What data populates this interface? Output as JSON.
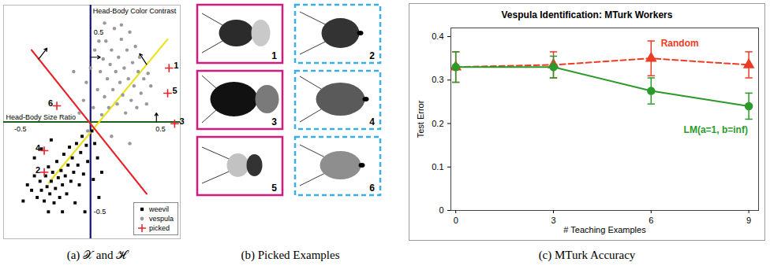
{
  "chart_data": [
    {
      "type": "scatter",
      "caption": "(a) 𝒳 and ℋ",
      "xlabel": "Head-Body Size Ratio",
      "ylabel": "Head-Body Color Contrast",
      "xlim": [
        -0.62,
        0.64
      ],
      "ylim": [
        -0.65,
        0.65
      ],
      "xticks": [
        -0.5,
        0.5
      ],
      "yticks": [
        -0.5,
        0.5
      ],
      "grid": false,
      "legend": "lower right",
      "series": [
        {
          "name": "weevil",
          "color": "#000000",
          "marker": "square",
          "x": [
            -0.45,
            -0.42,
            -0.4,
            -0.38,
            -0.36,
            -0.35,
            -0.33,
            -0.32,
            -0.31,
            -0.3,
            -0.29,
            -0.28,
            -0.27,
            -0.26,
            -0.25,
            -0.24,
            -0.23,
            -0.22,
            -0.21,
            -0.2,
            -0.19,
            -0.18,
            -0.17,
            -0.16,
            -0.15,
            -0.14,
            -0.13,
            -0.12,
            -0.11,
            -0.1,
            -0.09,
            -0.08,
            -0.07,
            -0.06,
            -0.05,
            -0.04,
            -0.03,
            -0.02,
            0.01,
            0.02,
            0.03,
            0.05,
            0.06,
            0.08,
            -0.4,
            -0.35,
            -0.28,
            -0.48,
            -0.2,
            -0.3
          ],
          "y": [
            -0.35,
            -0.38,
            -0.3,
            -0.42,
            -0.33,
            -0.38,
            -0.44,
            -0.3,
            -0.36,
            -0.25,
            -0.4,
            -0.33,
            -0.28,
            -0.45,
            -0.37,
            -0.22,
            -0.31,
            -0.42,
            -0.27,
            -0.35,
            -0.18,
            -0.3,
            -0.4,
            -0.24,
            -0.14,
            -0.33,
            -0.2,
            -0.28,
            -0.45,
            -0.12,
            -0.24,
            -0.35,
            -0.17,
            -0.08,
            -0.29,
            -0.5,
            -0.13,
            -0.22,
            -0.05,
            -0.32,
            -0.12,
            -0.2,
            -0.42,
            -0.28,
            -0.2,
            -0.15,
            -0.1,
            -0.44,
            -0.5,
            -0.5
          ]
        },
        {
          "name": "vespula",
          "color": "#999999",
          "marker": "circle",
          "x": [
            -0.08,
            -0.05,
            -0.03,
            0.0,
            0.02,
            0.03,
            0.05,
            0.06,
            0.07,
            0.08,
            0.09,
            0.1,
            0.11,
            0.12,
            0.13,
            0.14,
            0.15,
            0.16,
            0.17,
            0.18,
            0.19,
            0.2,
            0.21,
            0.22,
            0.23,
            0.24,
            0.25,
            0.26,
            0.27,
            0.28,
            0.29,
            0.3,
            0.31,
            0.32,
            0.33,
            0.34,
            0.35,
            0.36,
            0.38,
            0.4,
            0.41,
            0.43,
            -0.12,
            -0.02,
            0.15,
            0.28,
            0.1,
            0.22
          ],
          "y": [
            0.05,
            0.12,
            0.22,
            0.3,
            0.08,
            0.4,
            0.18,
            0.45,
            0.28,
            0.04,
            0.35,
            0.14,
            0.45,
            0.24,
            0.08,
            0.32,
            0.4,
            0.18,
            0.52,
            0.28,
            0.1,
            0.36,
            0.22,
            0.46,
            0.15,
            0.3,
            0.05,
            0.4,
            0.24,
            0.5,
            0.12,
            0.33,
            0.2,
            0.42,
            0.08,
            0.28,
            0.36,
            0.16,
            0.24,
            0.1,
            0.27,
            0.2,
            0.28,
            -0.05,
            -0.08,
            -0.12,
            0.55,
            0.54
          ]
        },
        {
          "name": "picked",
          "color": "#e8202a",
          "marker": "plus",
          "x": [
            0.56,
            -0.33,
            0.6,
            -0.33,
            0.55,
            -0.24
          ],
          "y": [
            0.3,
            -0.28,
            -0.01,
            -0.16,
            0.16,
            0.09
          ],
          "point_labels": [
            "1",
            "2",
            "3",
            "4",
            "5",
            "6"
          ]
        }
      ],
      "hypotheses": [
        {
          "color": "#14146e",
          "x": [
            0,
            0
          ],
          "y": [
            -0.65,
            0.65
          ]
        },
        {
          "color": "#1c5e1c",
          "x": [
            -0.62,
            0.64
          ],
          "y": [
            0,
            0
          ]
        },
        {
          "color": "#ece21c",
          "x": [
            -0.3,
            0.55
          ],
          "y": [
            -0.34,
            0.46
          ]
        },
        {
          "color": "#e8202a",
          "x": [
            -0.42,
            0.4
          ],
          "y": [
            0.4,
            -0.4
          ]
        }
      ],
      "arrows": [
        {
          "x1": -0.37,
          "y1": 0.35,
          "x2": -0.31,
          "y2": 0.41
        },
        {
          "x1": 0.0,
          "y1": 0.36,
          "x2": 0.07,
          "y2": 0.36
        },
        {
          "x1": 0.4,
          "y1": 0.32,
          "x2": 0.35,
          "y2": 0.38
        },
        {
          "x1": 0.47,
          "y1": 0.0,
          "x2": 0.47,
          "y2": 0.05
        }
      ]
    },
    {
      "type": "line",
      "title": "Vespula Identification: MTurk Workers",
      "caption": "(c) MTurk Accuracy",
      "xlabel": "# Teaching Examples",
      "ylabel": "Test Error",
      "x": [
        0,
        3,
        6,
        9
      ],
      "xlim": [
        -0.15,
        9.3
      ],
      "ylim": [
        0,
        0.42
      ],
      "xticks": [
        0,
        3,
        6,
        9
      ],
      "yticks": [
        0,
        0.1,
        0.2,
        0.3,
        0.4
      ],
      "grid": false,
      "series": [
        {
          "name": "Random",
          "color": "#ee3b24",
          "line_style": "dashed",
          "marker": "triangle",
          "values": [
            0.33,
            0.335,
            0.35,
            0.335
          ],
          "errors": [
            0.035,
            0.03,
            0.04,
            0.03
          ],
          "label_x": 6.3,
          "label_y": 0.385
        },
        {
          "name": "LM(a=1, b=inf)",
          "color": "#2a9a2a",
          "line_style": "solid",
          "marker": "circle",
          "values": [
            0.33,
            0.33,
            0.275,
            0.24
          ],
          "errors": [
            0.035,
            0.025,
            0.03,
            0.03
          ],
          "label_x": 7.0,
          "label_y": 0.185
        }
      ]
    }
  ],
  "examples": {
    "caption": "(b) Picked Examples",
    "items": [
      {
        "label": "1",
        "class": "vespula",
        "body_color": "#2b2b2b",
        "head_color": "#c9c9c9"
      },
      {
        "label": "2",
        "class": "weevil",
        "body_color": "#333333",
        "head_color": "#000000"
      },
      {
        "label": "3",
        "class": "vespula",
        "body_color": "#111111",
        "head_color": "#7a7a7a"
      },
      {
        "label": "4",
        "class": "weevil",
        "body_color": "#5a5a5a",
        "head_color": "#000000"
      },
      {
        "label": "5",
        "class": "vespula",
        "body_color": "#c2c2c2",
        "head_color": "#333333"
      },
      {
        "label": "6",
        "class": "weevil",
        "body_color": "#8e8e8e",
        "head_color": "#000000"
      }
    ]
  }
}
